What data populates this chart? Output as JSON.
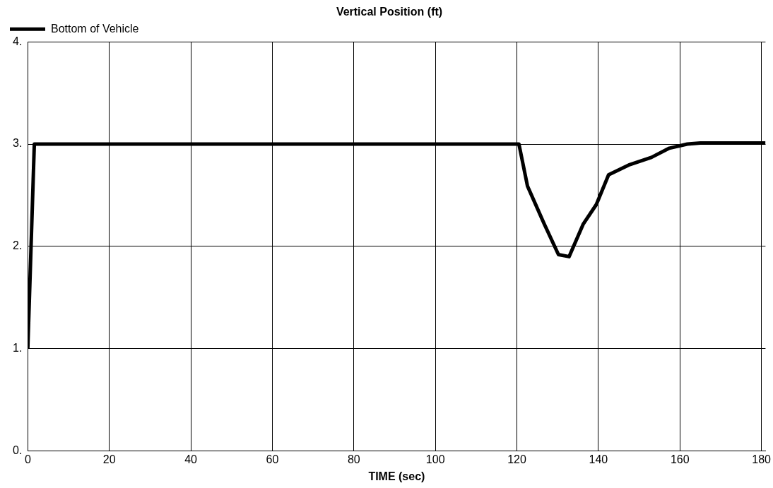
{
  "chart_data": {
    "type": "line",
    "title": "Vertical Position (ft)",
    "xlabel": "TIME (sec)",
    "xlim": [
      0,
      181
    ],
    "xticks": [
      0,
      20,
      40,
      60,
      80,
      100,
      120,
      140,
      160,
      180
    ],
    "ylim": [
      0,
      4
    ],
    "yticks": [
      {
        "value": 0,
        "label": "0."
      },
      {
        "value": 1,
        "label": "1."
      },
      {
        "value": 2,
        "label": "2."
      },
      {
        "value": 3,
        "label": "3."
      },
      {
        "value": 4,
        "label": "4."
      }
    ],
    "grid": true,
    "legend": "top left",
    "marker": "none",
    "line_style": "solid",
    "series": [
      {
        "name": "Bottom of Vehicle",
        "color": "#000000",
        "x": [
          0,
          1.6,
          120.5,
          122.6,
          126.7,
          130.2,
          132.8,
          136.3,
          139.5,
          142.5,
          147.7,
          153,
          157.4,
          161.8,
          165,
          181
        ],
        "values": [
          1.0,
          3.0,
          3.0,
          2.59,
          2.22,
          1.92,
          1.9,
          2.22,
          2.41,
          2.7,
          2.8,
          2.87,
          2.96,
          3.0,
          3.01,
          3.01
        ]
      }
    ]
  }
}
